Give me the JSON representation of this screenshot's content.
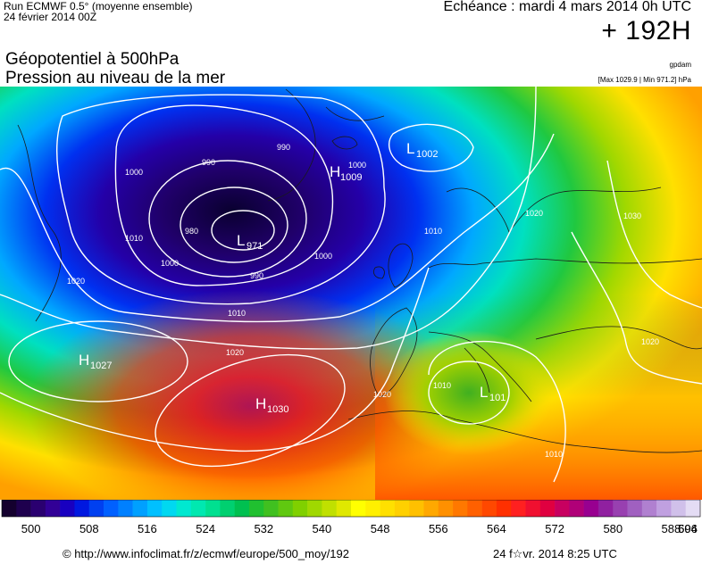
{
  "header": {
    "run": "Run ECMWF 0.5° (moyenne ensemble)",
    "date": "24 février 2014 00Z",
    "valid": "Echéance : mardi 4 mars 2014 0h UTC",
    "lead": "+ 192H",
    "title_line1": "Géopotentiel à 500hPa",
    "title_line2": "Pression au niveau de la mer",
    "credit": "gpdam",
    "maxmin": "[Max 1029.9 | Min 971.2] hPa"
  },
  "map": {
    "centers": [
      {
        "kind": "L",
        "value": "971"
      },
      {
        "kind": "L",
        "value": "1002"
      },
      {
        "kind": "H",
        "value": "1009"
      },
      {
        "kind": "H",
        "value": "1027"
      },
      {
        "kind": "H",
        "value": "1030"
      },
      {
        "kind": "L",
        "value": "101"
      }
    ],
    "isobar_labels": [
      "980",
      "990",
      "1000",
      "1000",
      "990",
      "1010",
      "1020",
      "1010",
      "1020",
      "1010",
      "1020",
      "1020",
      "1030",
      "1020",
      "1010",
      "1000",
      "1000",
      "990",
      "1010"
    ]
  },
  "legend": {
    "labels": [
      "500",
      "508",
      "516",
      "524",
      "532",
      "540",
      "548",
      "556",
      "564",
      "572",
      "580",
      "588",
      "596",
      "604"
    ],
    "colors": [
      "#14002e",
      "#1e004e",
      "#2a0070",
      "#320096",
      "#1800c0",
      "#0018e0",
      "#0040f0",
      "#0060ff",
      "#0080ff",
      "#00a0ff",
      "#00c0ff",
      "#00d8f0",
      "#00e8d0",
      "#00e8b0",
      "#00e090",
      "#00d070",
      "#00c050",
      "#20c030",
      "#40c020",
      "#60c810",
      "#80d000",
      "#a0d800",
      "#c0e000",
      "#e0e800",
      "#ffff00",
      "#fff000",
      "#ffe000",
      "#ffd000",
      "#ffc000",
      "#ffa800",
      "#ff9000",
      "#ff7800",
      "#ff6000",
      "#ff4800",
      "#ff3000",
      "#ff2020",
      "#f01030",
      "#e00040",
      "#c80060",
      "#b00078",
      "#980090",
      "#9020a0",
      "#9840b0",
      "#a060c0",
      "#b080d0",
      "#c0a0e0",
      "#d0c0ea",
      "#e4dcf4"
    ]
  },
  "footer": {
    "source": "© http://www.infoclimat.fr/z/ecmwf/europe/500_moy/192",
    "generated": "24 f☆vr. 2014  8:25 UTC"
  }
}
